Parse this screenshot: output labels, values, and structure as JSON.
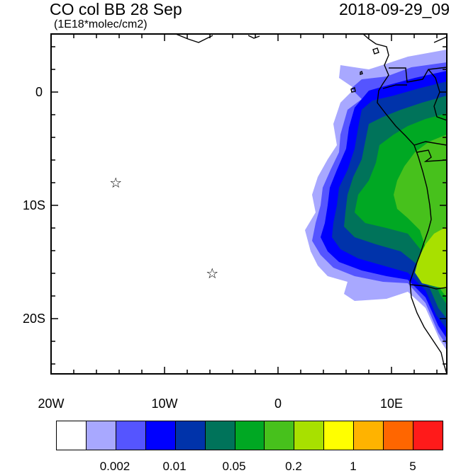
{
  "title_left": "CO col BB 28 Sep",
  "title_right": "2018-09-29_09",
  "units": "(1E18*molec/cm2)",
  "axes": {
    "x_ticks": [
      "20W",
      "10W",
      "0",
      "10E"
    ],
    "y_ticks": [
      "0",
      "10S",
      "20S"
    ]
  },
  "markers": {
    "symbol": "☆",
    "points": [
      {
        "lon": -14.3,
        "lat": -8.0
      },
      {
        "lon": -5.8,
        "lat": -16.0
      }
    ]
  },
  "colorbar": {
    "colors": [
      "#ffffff",
      "#a8a8ff",
      "#5555ff",
      "#0000ff",
      "#0033aa",
      "#00735a",
      "#00a823",
      "#47c11c",
      "#a8e000",
      "#ffff00",
      "#ffb300",
      "#ff6600",
      "#ff1a1a"
    ],
    "labels": [
      "0.002",
      "0.01",
      "0.05",
      "0.2",
      "1",
      "5"
    ]
  }
}
